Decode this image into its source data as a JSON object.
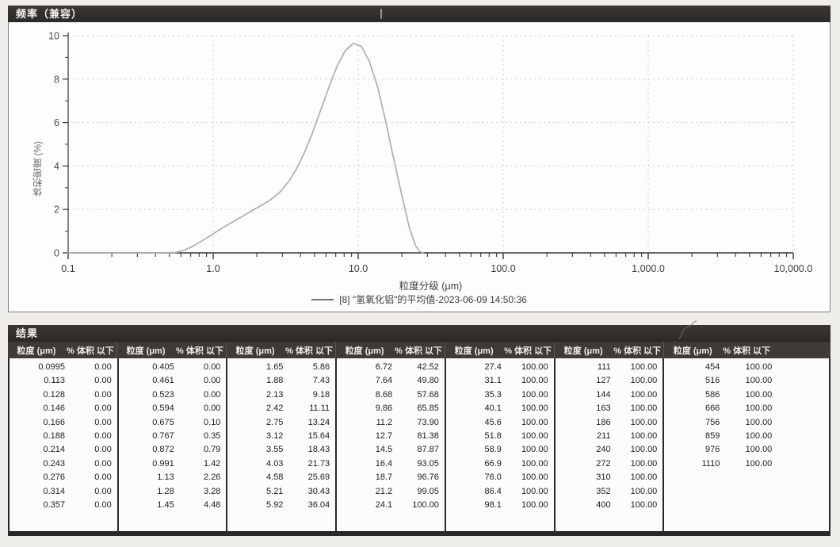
{
  "chart": {
    "panel_title": "频率（兼容）"
  },
  "chart_data": {
    "type": "line",
    "title": "频率（兼容）",
    "xlabel": "粒度分级 (μm)",
    "ylabel": "体积密度 (%)",
    "x_scale": "log",
    "xlim": [
      0.1,
      10000
    ],
    "ylim": [
      0,
      10
    ],
    "x_ticks": [
      "0.1",
      "1.0",
      "10.0",
      "100.0",
      "1,000.0",
      "10,000.0"
    ],
    "x_tick_values": [
      0.1,
      1,
      10,
      100,
      1000,
      10000
    ],
    "y_ticks": [
      "0",
      "2",
      "4",
      "6",
      "8",
      "10"
    ],
    "y_tick_values": [
      0,
      2,
      4,
      6,
      8,
      10
    ],
    "grid": true,
    "legend_position": "bottom-center",
    "series": [
      {
        "name": "[8] \"氢氧化铝\"的平均值-2023-06-09 14:50:36",
        "color": "#aab2aa",
        "points": [
          [
            0.1,
            0
          ],
          [
            0.45,
            0
          ],
          [
            0.55,
            0.02
          ],
          [
            0.63,
            0.12
          ],
          [
            0.72,
            0.3
          ],
          [
            0.82,
            0.52
          ],
          [
            0.93,
            0.74
          ],
          [
            1.06,
            0.99
          ],
          [
            1.2,
            1.21
          ],
          [
            1.36,
            1.42
          ],
          [
            1.55,
            1.63
          ],
          [
            1.76,
            1.86
          ],
          [
            2.0,
            2.07
          ],
          [
            2.27,
            2.28
          ],
          [
            2.58,
            2.52
          ],
          [
            2.93,
            2.84
          ],
          [
            3.33,
            3.3
          ],
          [
            3.78,
            3.9
          ],
          [
            4.3,
            4.68
          ],
          [
            4.89,
            5.6
          ],
          [
            5.55,
            6.63
          ],
          [
            6.31,
            7.66
          ],
          [
            7.16,
            8.6
          ],
          [
            8.15,
            9.31
          ],
          [
            9.25,
            9.65
          ],
          [
            10.5,
            9.51
          ],
          [
            11.9,
            8.84
          ],
          [
            13.6,
            7.67
          ],
          [
            15.4,
            6.12
          ],
          [
            17.5,
            4.38
          ],
          [
            19.9,
            2.71
          ],
          [
            22.6,
            1.12
          ],
          [
            25.0,
            0.3
          ],
          [
            26.5,
            0.07
          ],
          [
            28.0,
            0
          ]
        ]
      }
    ]
  },
  "results": {
    "title": "结果",
    "col_size_label": "粒度 (μm)",
    "col_volume_label": "% 体积 以下",
    "groups": [
      {
        "rows": [
          [
            "0.0995",
            "0.00"
          ],
          [
            "0.113",
            "0.00"
          ],
          [
            "0.128",
            "0.00"
          ],
          [
            "0.146",
            "0.00"
          ],
          [
            "0.166",
            "0.00"
          ],
          [
            "0.188",
            "0.00"
          ],
          [
            "0.214",
            "0.00"
          ],
          [
            "0.243",
            "0.00"
          ],
          [
            "0.276",
            "0.00"
          ],
          [
            "0.314",
            "0.00"
          ],
          [
            "0.357",
            "0.00"
          ]
        ]
      },
      {
        "rows": [
          [
            "0.405",
            "0.00"
          ],
          [
            "0.461",
            "0.00"
          ],
          [
            "0.523",
            "0.00"
          ],
          [
            "0.594",
            "0.00"
          ],
          [
            "0.675",
            "0.10"
          ],
          [
            "0.767",
            "0.35"
          ],
          [
            "0.872",
            "0.79"
          ],
          [
            "0.991",
            "1.42"
          ],
          [
            "1.13",
            "2.26"
          ],
          [
            "1.28",
            "3.28"
          ],
          [
            "1.45",
            "4.48"
          ]
        ]
      },
      {
        "rows": [
          [
            "1.65",
            "5.86"
          ],
          [
            "1.88",
            "7.43"
          ],
          [
            "2.13",
            "9.18"
          ],
          [
            "2.42",
            "11.11"
          ],
          [
            "2.75",
            "13.24"
          ],
          [
            "3.12",
            "15.64"
          ],
          [
            "3.55",
            "18.43"
          ],
          [
            "4.03",
            "21.73"
          ],
          [
            "4.58",
            "25.69"
          ],
          [
            "5.21",
            "30.43"
          ],
          [
            "5.92",
            "36.04"
          ]
        ]
      },
      {
        "rows": [
          [
            "6.72",
            "42.52"
          ],
          [
            "7.64",
            "49.80"
          ],
          [
            "8.68",
            "57.68"
          ],
          [
            "9.86",
            "65.85"
          ],
          [
            "11.2",
            "73.90"
          ],
          [
            "12.7",
            "81.38"
          ],
          [
            "14.5",
            "87.87"
          ],
          [
            "16.4",
            "93.05"
          ],
          [
            "18.7",
            "96.76"
          ],
          [
            "21.2",
            "99.05"
          ],
          [
            "24.1",
            "100.00"
          ]
        ]
      },
      {
        "rows": [
          [
            "27.4",
            "100.00"
          ],
          [
            "31.1",
            "100.00"
          ],
          [
            "35.3",
            "100.00"
          ],
          [
            "40.1",
            "100.00"
          ],
          [
            "45.6",
            "100.00"
          ],
          [
            "51.8",
            "100.00"
          ],
          [
            "58.9",
            "100.00"
          ],
          [
            "66.9",
            "100.00"
          ],
          [
            "76.0",
            "100.00"
          ],
          [
            "86.4",
            "100.00"
          ],
          [
            "98.1",
            "100.00"
          ]
        ]
      },
      {
        "rows": [
          [
            "111",
            "100.00"
          ],
          [
            "127",
            "100.00"
          ],
          [
            "144",
            "100.00"
          ],
          [
            "163",
            "100.00"
          ],
          [
            "186",
            "100.00"
          ],
          [
            "211",
            "100.00"
          ],
          [
            "240",
            "100.00"
          ],
          [
            "272",
            "100.00"
          ],
          [
            "310",
            "100.00"
          ],
          [
            "352",
            "100.00"
          ],
          [
            "400",
            "100.00"
          ]
        ]
      },
      {
        "rows": [
          [
            "454",
            "100.00"
          ],
          [
            "516",
            "100.00"
          ],
          [
            "586",
            "100.00"
          ],
          [
            "666",
            "100.00"
          ],
          [
            "756",
            "100.00"
          ],
          [
            "859",
            "100.00"
          ],
          [
            "976",
            "100.00"
          ],
          [
            "1110",
            "100.00"
          ]
        ]
      }
    ]
  }
}
